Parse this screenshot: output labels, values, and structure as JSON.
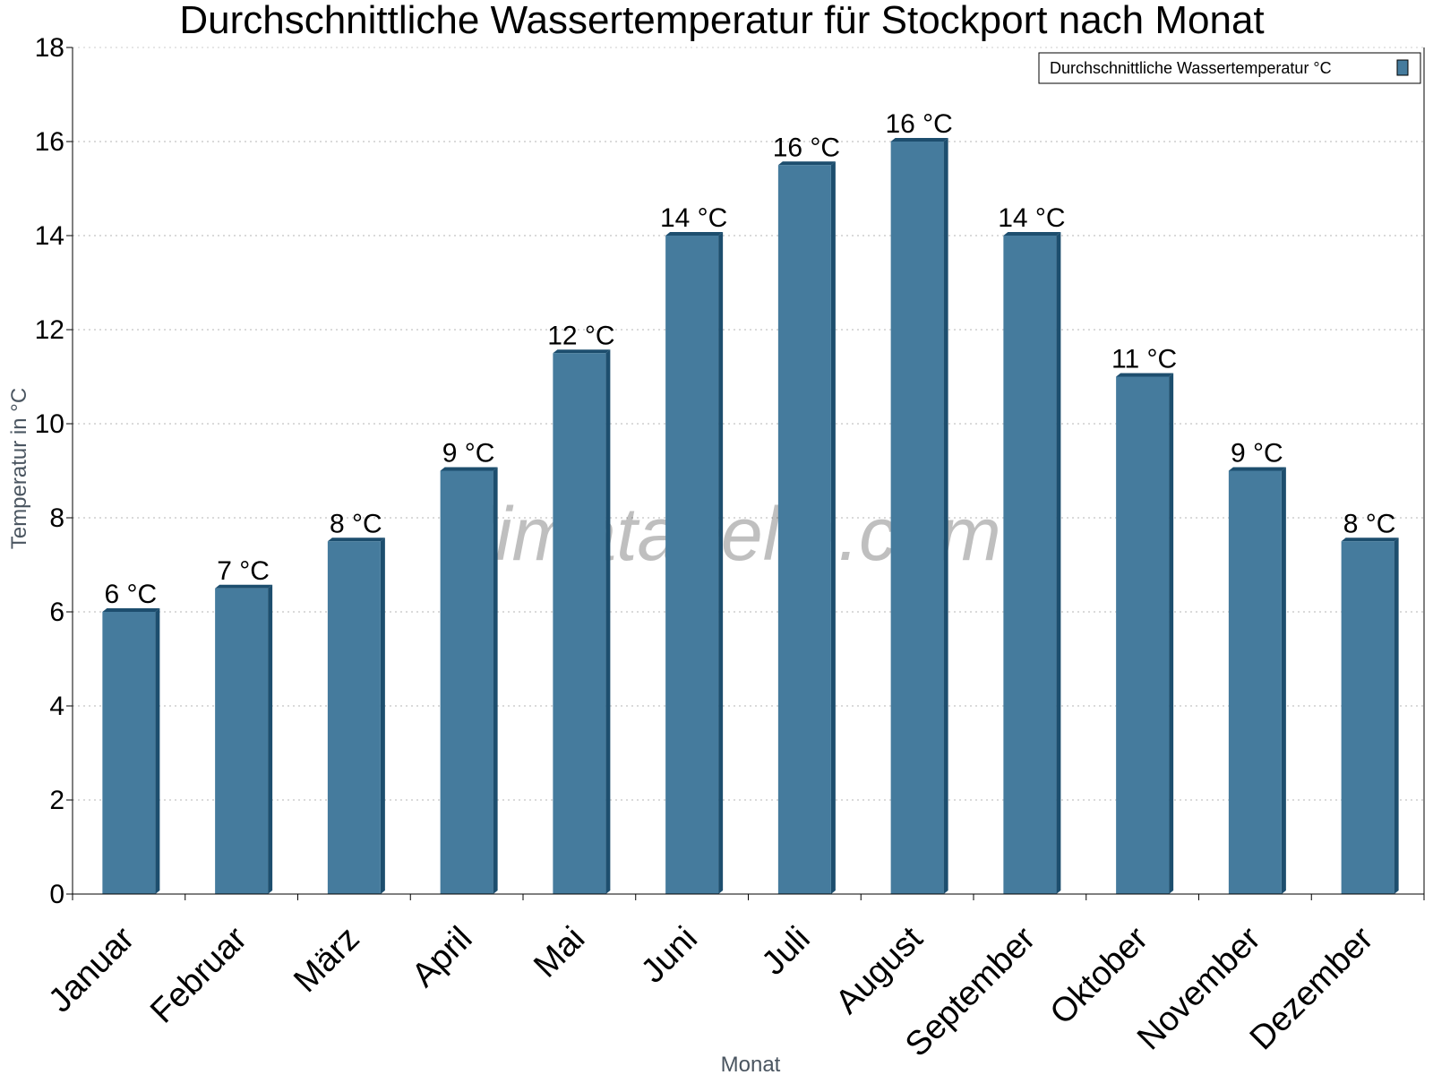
{
  "chart_data": {
    "type": "bar",
    "title": "Durchschnittliche Wassertemperatur für Stockport nach Monat",
    "xlabel": "Monat",
    "ylabel": "Temperatur in °C",
    "ylim": [
      0,
      18
    ],
    "yticks": [
      0,
      2,
      4,
      6,
      8,
      10,
      12,
      14,
      16,
      18
    ],
    "grid": true,
    "legend_position": "top-right",
    "categories": [
      "Januar",
      "Februar",
      "März",
      "April",
      "Mai",
      "Juni",
      "Juli",
      "August",
      "September",
      "Oktober",
      "November",
      "Dezember"
    ],
    "series": [
      {
        "name": "Durchschnittliche Wassertemperatur °C",
        "values": [
          6.0,
          6.5,
          7.5,
          9.0,
          11.5,
          14.0,
          15.5,
          16.0,
          14.0,
          11.0,
          9.0,
          7.5
        ],
        "labels": [
          "6 °C",
          "7 °C",
          "8 °C",
          "9 °C",
          "12 °C",
          "14 °C",
          "16 °C",
          "16 °C",
          "14 °C",
          "11 °C",
          "9 °C",
          "8 °C"
        ],
        "color": "#457b9d",
        "shade_color": "#1d4e6e"
      }
    ]
  },
  "watermark": "klimatabelle.com"
}
